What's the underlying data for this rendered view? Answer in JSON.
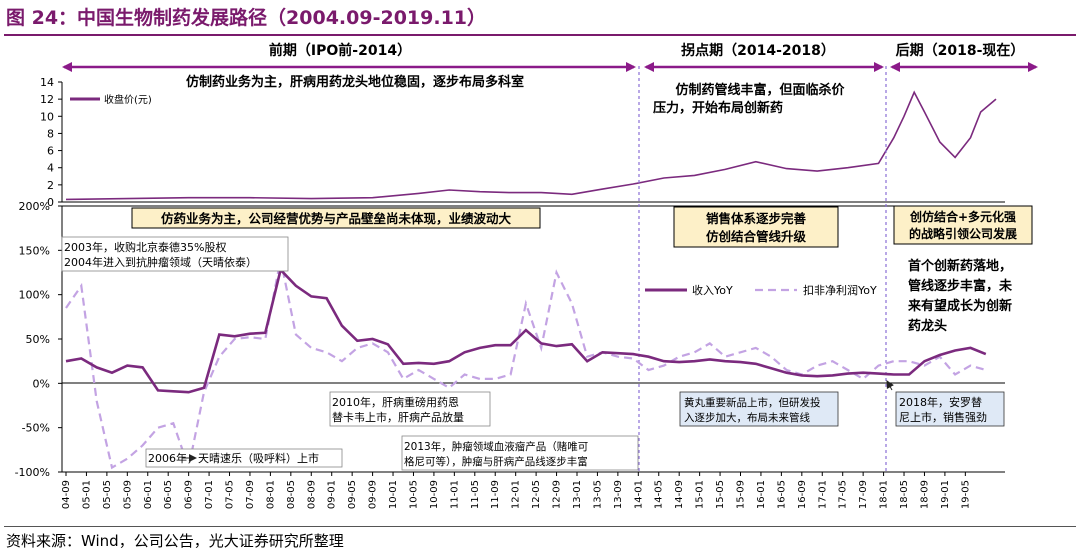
{
  "figure": {
    "title": "图 24：中国生物制药发展路径（2004.09-2019.11）",
    "source": "资料来源：Wind，公司公告，光大证券研究所整理"
  },
  "colors": {
    "accent": "#7a1a6c",
    "revenue": "#7b2a7e",
    "profit": "#c3a3e3",
    "stage_line": "#8a6fd6",
    "note_fill": "#fdf0c8",
    "note_fill_light": "#dfe9f6"
  },
  "stages": [
    {
      "label": "前期（IPO前-2014）",
      "note": "仿制药业务为主，肝病用药龙头地位稳固，逐步布局多科室"
    },
    {
      "label": "拐点期（2014-2018）",
      "note": "仿制药管线丰富，但面临杀价压力，开始布局创新药"
    },
    {
      "label": "后期（2018-现在）",
      "note": ""
    }
  ],
  "boxes": {
    "period1": "仿药业务为主，公司经营优势与产品壁垒尚未体现，业绩波动大",
    "period2_line1": "销售体系逐步完善",
    "period2_line2": "仿创结合管线升级",
    "period3_line1": "创仿结合+多元化强",
    "period3_line2": "的战略引领公司发展"
  },
  "right_text": [
    "首个创新药落地，",
    "管线逐步丰富，未",
    "来有望成长为创新",
    "药龙头"
  ],
  "annotations": {
    "a2003": "2003年，收购北京泰德35%股权",
    "a2004": "2004年进入到抗肿瘤领域（天晴依泰）",
    "a2006": "2006年，天晴速乐（吸呼料）上市",
    "a2010_1": "2010年，肝病重磅用药恩",
    "a2010_2": "替卡韦上市，肝病产品放量",
    "a2013_1": "2013年，肿瘤领域血液瘤产品（赌唯可",
    "a2013_2": "格尼可等），肿瘤与肝病产品线逐步丰富",
    "amid_1": "黄丸重要新品上市，但研发投",
    "amid_2": "入逐步加大，布局未来管线",
    "a2018_1": "2018年，安罗替",
    "a2018_2": "尼上市，销售强劲"
  },
  "chart_data": [
    {
      "type": "line",
      "title": "",
      "xlabel": "",
      "ylabel": "",
      "ylim": [
        0,
        14
      ],
      "yticks": [
        "0",
        "2",
        "4",
        "6",
        "8",
        "10",
        "12",
        "14"
      ],
      "grid": false,
      "legend_position": "top-left",
      "series": [
        {
          "name": "收盘价(元)",
          "x": [
            "04-09",
            "05-09",
            "06-09",
            "07-09",
            "08-09",
            "09-09",
            "10-06",
            "10-12",
            "11-06",
            "11-12",
            "12-06",
            "12-12",
            "13-06",
            "13-12",
            "14-06",
            "14-12",
            "15-06",
            "15-12",
            "16-06",
            "16-12",
            "17-06",
            "17-12",
            "18-03",
            "18-05",
            "18-07",
            "18-09",
            "18-12",
            "19-03",
            "19-06",
            "19-08",
            "19-11"
          ],
          "values": [
            0.3,
            0.4,
            0.5,
            0.5,
            0.4,
            0.5,
            1.0,
            1.4,
            1.2,
            1.1,
            1.1,
            0.9,
            1.5,
            2.1,
            2.8,
            3.1,
            3.8,
            4.7,
            3.9,
            3.6,
            4.0,
            4.5,
            7.5,
            10.0,
            12.8,
            10.5,
            7.0,
            5.2,
            7.5,
            10.5,
            12.0
          ]
        }
      ]
    },
    {
      "type": "line",
      "title": "",
      "xlabel": "",
      "ylabel": "",
      "ylim": [
        -100,
        200
      ],
      "yticks": [
        "-100%",
        "-50%",
        "0%",
        "50%",
        "100%",
        "150%",
        "200%"
      ],
      "grid": false,
      "legend_position": "right",
      "categories": [
        "04-09",
        "05-01",
        "05-05",
        "05-09",
        "06-01",
        "06-05",
        "06-09",
        "07-01",
        "07-05",
        "07-09",
        "08-01",
        "08-05",
        "08-09",
        "09-01",
        "09-05",
        "09-09",
        "10-01",
        "10-05",
        "10-09",
        "11-01",
        "11-05",
        "11-09",
        "12-01",
        "12-05",
        "12-09",
        "13-01",
        "13-05",
        "13-09",
        "14-01",
        "14-05",
        "14-09",
        "15-01",
        "15-05",
        "15-09",
        "16-01",
        "16-05",
        "16-09",
        "17-01",
        "17-05",
        "17-09",
        "18-01",
        "18-05",
        "18-09",
        "19-01",
        "19-05"
      ],
      "series": [
        {
          "name": "收入YoY",
          "x": [
            "04-09",
            "04-12",
            "05-03",
            "05-06",
            "05-09",
            "05-12",
            "06-03",
            "06-06",
            "06-09",
            "06-12",
            "07-03",
            "07-06",
            "07-09",
            "07-12",
            "08-03",
            "08-06",
            "08-09",
            "08-12",
            "09-03",
            "09-06",
            "09-09",
            "09-12",
            "10-03",
            "10-06",
            "10-09",
            "10-12",
            "11-03",
            "11-06",
            "11-09",
            "11-12",
            "12-03",
            "12-06",
            "12-09",
            "12-12",
            "13-03",
            "13-06",
            "13-09",
            "13-12",
            "14-03",
            "14-06",
            "14-09",
            "14-12",
            "15-03",
            "15-06",
            "15-09",
            "15-12",
            "16-03",
            "16-06",
            "16-09",
            "16-12",
            "17-03",
            "17-06",
            "17-09",
            "17-12",
            "18-03",
            "18-06",
            "18-09",
            "18-12",
            "19-03",
            "19-06",
            "19-09"
          ],
          "values": [
            25,
            28,
            18,
            12,
            20,
            18,
            -8,
            -9,
            -10,
            -5,
            55,
            53,
            56,
            57,
            128,
            110,
            98,
            96,
            65,
            48,
            50,
            44,
            22,
            23,
            22,
            25,
            35,
            40,
            43,
            43,
            60,
            45,
            42,
            44,
            25,
            35,
            34,
            33,
            30,
            25,
            24,
            25,
            27,
            25,
            24,
            22,
            17,
            12,
            9,
            8,
            9,
            11,
            12,
            11,
            10,
            10,
            25,
            32,
            37,
            40,
            33
          ]
        },
        {
          "name": "扣非净利润YoY",
          "x": [
            "04-09",
            "04-12",
            "05-03",
            "05-06",
            "05-09",
            "05-12",
            "06-03",
            "06-06",
            "06-09",
            "06-12",
            "07-03",
            "07-06",
            "07-09",
            "07-12",
            "08-03",
            "08-06",
            "08-09",
            "08-12",
            "09-03",
            "09-06",
            "09-09",
            "09-12",
            "10-03",
            "10-06",
            "10-09",
            "10-12",
            "11-03",
            "11-06",
            "11-09",
            "11-12",
            "12-03",
            "12-06",
            "12-09",
            "12-12",
            "13-03",
            "13-06",
            "13-09",
            "13-12",
            "14-03",
            "14-06",
            "14-09",
            "14-12",
            "15-03",
            "15-06",
            "15-09",
            "15-12",
            "16-03",
            "16-06",
            "16-09",
            "16-12",
            "17-03",
            "17-06",
            "17-09",
            "17-12",
            "18-03",
            "18-06",
            "18-09",
            "18-12",
            "19-03",
            "19-06",
            "19-09"
          ],
          "values": [
            85,
            110,
            -20,
            -95,
            -85,
            -70,
            -50,
            -45,
            -95,
            -10,
            30,
            50,
            52,
            50,
            140,
            55,
            40,
            35,
            25,
            40,
            45,
            35,
            5,
            15,
            5,
            -5,
            10,
            5,
            5,
            10,
            90,
            40,
            125,
            90,
            30,
            35,
            30,
            28,
            15,
            20,
            30,
            35,
            45,
            30,
            35,
            40,
            30,
            15,
            10,
            20,
            25,
            15,
            5,
            20,
            25,
            25,
            20,
            30,
            10,
            20,
            15
          ]
        }
      ]
    }
  ]
}
